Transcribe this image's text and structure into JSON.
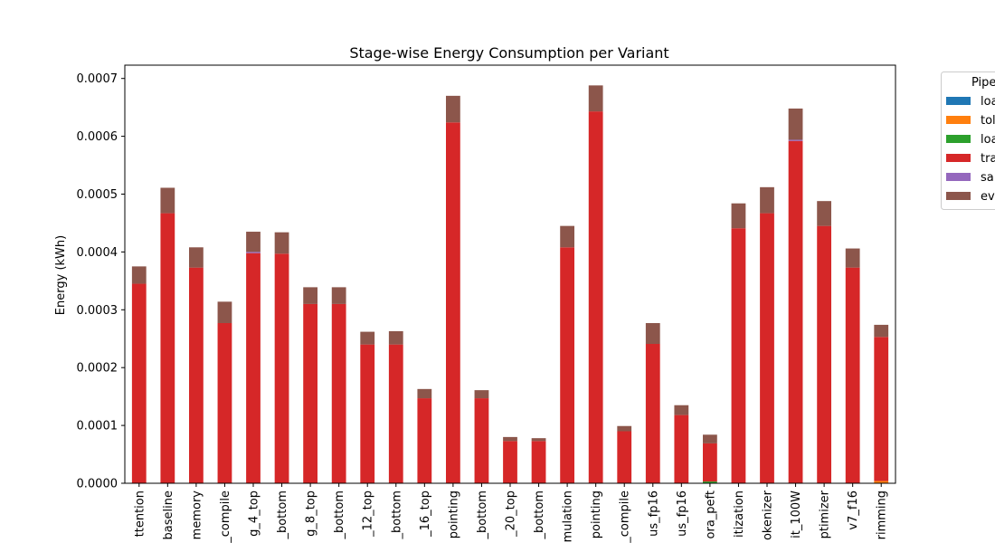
{
  "chart_data": {
    "type": "bar",
    "stacked": true,
    "title": "Stage-wise Energy Consumption per Variant",
    "xlabel": "",
    "ylabel": "Energy (kWh)",
    "ylim": [
      0,
      0.000723
    ],
    "yticks": [
      "0.0000",
      "0.0001",
      "0.0002",
      "0.0003",
      "0.0004",
      "0.0005",
      "0.0006",
      "0.0007"
    ],
    "grid": false,
    "legend_position": "upper-right-outside",
    "legend_title": "Pipe",
    "categories": [
      "ttention",
      "baseline",
      "memory",
      "_compile",
      "g_4_top",
      "_bottom",
      "g_8_top",
      "_bottom",
      "_12_top",
      "_bottom",
      "_16_top",
      "pointing",
      "_bottom",
      "_20_top",
      "_bottom",
      "mulation",
      "pointing",
      "_compile",
      "us_fp16",
      "us_fp16",
      "ora_peft",
      "itization",
      "okenizer",
      "it_100W",
      "ptimizer",
      "v7_f16",
      "rimming"
    ],
    "series": [
      {
        "name": "loa",
        "color": "#1f77b4",
        "values": [
          0,
          0,
          0,
          0,
          0,
          0,
          0,
          0,
          0,
          0,
          0,
          0,
          0,
          0,
          0,
          0,
          0,
          0,
          0,
          0,
          0,
          0,
          0,
          0,
          0,
          0,
          0
        ]
      },
      {
        "name": "tol",
        "color": "#ff7f0e",
        "values": [
          0,
          0,
          0,
          0,
          0,
          0,
          0,
          0,
          0,
          0,
          0,
          0,
          0,
          0,
          0,
          0,
          0,
          0,
          0,
          0,
          0,
          0,
          0,
          0,
          0,
          0,
          4e-06
        ]
      },
      {
        "name": "loa",
        "color": "#2ca02c",
        "values": [
          0,
          0,
          0,
          0,
          0,
          0,
          0,
          0,
          0,
          0,
          0,
          0,
          0,
          0,
          0,
          0,
          0,
          0,
          0,
          0,
          3e-06,
          0,
          0,
          0,
          0,
          0,
          0
        ]
      },
      {
        "name": "tra",
        "color": "#d62728",
        "values": [
          0.000345,
          0.000467,
          0.000373,
          0.000277,
          0.000398,
          0.000397,
          0.00031,
          0.00031,
          0.00024,
          0.00024,
          0.000147,
          0.000624,
          0.000147,
          7.3e-05,
          7.3e-05,
          0.000408,
          0.000643,
          9e-05,
          0.000241,
          0.000118,
          6.6e-05,
          0.000441,
          0.000467,
          0.000592,
          0.000445,
          0.000373,
          0.000249
        ]
      },
      {
        "name": "sa",
        "color": "#9467bd",
        "values": [
          0,
          0,
          0,
          0,
          2e-06,
          0,
          0,
          0,
          0,
          0,
          0,
          0,
          0,
          0,
          0,
          0,
          0,
          0,
          0,
          0,
          0,
          0,
          0,
          2e-06,
          0,
          0,
          0
        ]
      },
      {
        "name": "ev",
        "color": "#8c564b",
        "values": [
          3e-05,
          4.4e-05,
          3.5e-05,
          3.7e-05,
          3.5e-05,
          3.7e-05,
          2.9e-05,
          2.9e-05,
          2.2e-05,
          2.3e-05,
          1.6e-05,
          4.6e-05,
          1.4e-05,
          7e-06,
          5e-06,
          3.7e-05,
          4.5e-05,
          9e-06,
          3.6e-05,
          1.7e-05,
          1.5e-05,
          4.3e-05,
          4.5e-05,
          5.4e-05,
          4.3e-05,
          3.3e-05,
          2.1e-05
        ]
      }
    ]
  }
}
